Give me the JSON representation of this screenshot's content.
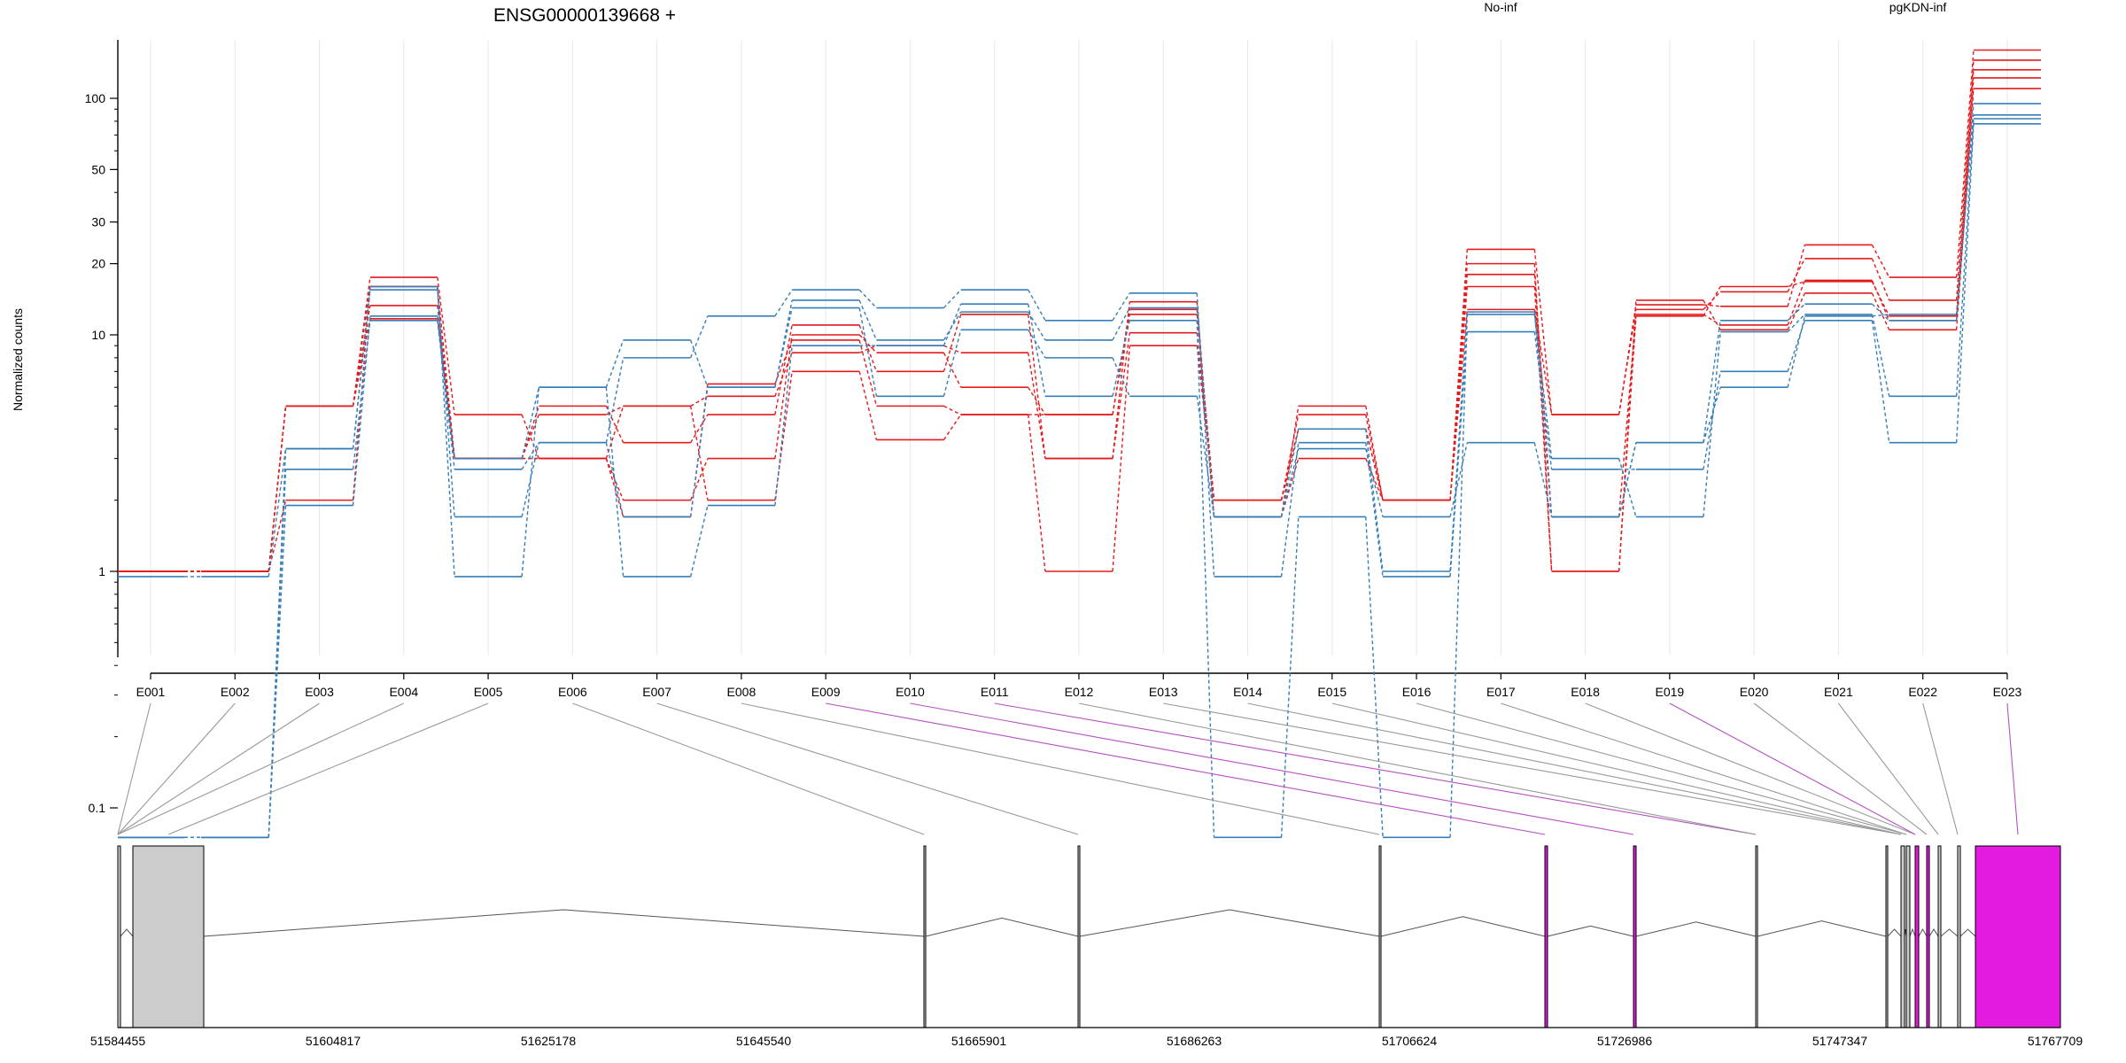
{
  "title": "ENSG00000139668 +",
  "legend": [
    {
      "label": "No-inf",
      "color": "#e41a1c"
    },
    {
      "label": "pgKDN-inf",
      "color": "#377eb8"
    }
  ],
  "chart_data": {
    "type": "line",
    "title": "ENSG00000139668 +",
    "ylabel": "Normalized counts",
    "xlabel": "",
    "y_scale": "log",
    "y_ticks": [
      0.1,
      1,
      10,
      20,
      30,
      50,
      100
    ],
    "ylim": [
      0.07,
      200
    ],
    "grid": "vertical, light",
    "legend_position": "top",
    "categories": [
      "E001",
      "E002",
      "E003",
      "E004",
      "E005",
      "E006",
      "E007",
      "E008",
      "E009",
      "E010",
      "E011",
      "E012",
      "E013",
      "E014",
      "E015",
      "E016",
      "E017",
      "E018",
      "E019",
      "E020",
      "E021",
      "E022",
      "E023"
    ],
    "series": [
      {
        "group": "No-inf",
        "color": "#e41a1c",
        "values": [
          1.0,
          1.0,
          5.0,
          17.5,
          4.6,
          3.0,
          5.0,
          5.5,
          8.4,
          9.0,
          8.4,
          3.0,
          10.2,
          2.0,
          4.6,
          2.0,
          12.8,
          4.6,
          13.4,
          13.2,
          24.0,
          17.5,
          160
        ]
      },
      {
        "group": "No-inf",
        "color": "#e41a1c",
        "values": [
          1.0,
          1.0,
          5.0,
          16.0,
          3.0,
          3.0,
          2.0,
          3.0,
          10.0,
          8.4,
          6.0,
          4.6,
          12.8,
          1.7,
          3.0,
          2.0,
          23.0,
          4.6,
          12.8,
          15.2,
          21.0,
          14.0,
          145
        ]
      },
      {
        "group": "No-inf",
        "color": "#e41a1c",
        "values": [
          1.0,
          1.0,
          5.0,
          11.7,
          3.0,
          5.0,
          3.5,
          4.6,
          11.0,
          7.0,
          12.2,
          3.0,
          13.8,
          1.7,
          5.0,
          2.0,
          20.0,
          1.0,
          12.0,
          16.0,
          16.8,
          12.0,
          132
        ]
      },
      {
        "group": "No-inf",
        "color": "#e41a1c",
        "values": [
          1.0,
          1.0,
          2.0,
          16.0,
          3.0,
          4.6,
          5.0,
          2.0,
          7.0,
          3.6,
          4.6,
          1.0,
          9.0,
          2.0,
          4.0,
          2.0,
          16.0,
          1.0,
          14.0,
          10.5,
          15.0,
          10.5,
          110
        ]
      },
      {
        "group": "No-inf",
        "color": "#e41a1c",
        "values": [
          1.0,
          1.0,
          5.0,
          13.3,
          3.0,
          3.0,
          1.7,
          6.2,
          9.5,
          5.0,
          4.6,
          4.6,
          12.2,
          2.0,
          4.0,
          2.0,
          18.0,
          1.7,
          12.2,
          11.0,
          17.0,
          11.5,
          122
        ]
      },
      {
        "group": "pgKDN-inf",
        "color": "#377eb8",
        "values": [
          0.95,
          0.95,
          3.3,
          15.5,
          1.7,
          3.5,
          8.0,
          12.0,
          15.5,
          13.0,
          15.5,
          11.5,
          15.0,
          0.95,
          3.5,
          0.95,
          10.3,
          2.7,
          2.7,
          7.0,
          11.5,
          3.5,
          78
        ]
      },
      {
        "group": "pgKDN-inf",
        "color": "#377eb8",
        "values": [
          0.075,
          0.075,
          2.7,
          11.5,
          2.7,
          3.5,
          1.7,
          6.0,
          13.0,
          5.5,
          10.5,
          8.0,
          5.5,
          1.7,
          3.3,
          1.7,
          3.5,
          1.7,
          3.5,
          6.0,
          12.0,
          12.2,
          85
        ]
      },
      {
        "group": "pgKDN-inf",
        "color": "#377eb8",
        "values": [
          0.075,
          0.075,
          1.9,
          12.0,
          3.0,
          6.0,
          9.5,
          6.0,
          14.0,
          9.5,
          12.5,
          9.5,
          13.0,
          1.7,
          4.0,
          1.0,
          12.5,
          1.7,
          3.5,
          11.5,
          13.5,
          11.5,
          95
        ]
      },
      {
        "group": "pgKDN-inf",
        "color": "#377eb8",
        "values": [
          0.075,
          0.075,
          3.3,
          16.0,
          0.95,
          6.0,
          0.95,
          1.9,
          9.0,
          9.0,
          13.5,
          5.5,
          11.5,
          0.075,
          1.7,
          0.075,
          12.2,
          3.0,
          1.7,
          10.3,
          12.2,
          5.5,
          82
        ]
      }
    ]
  },
  "gene_model": {
    "coordinates": [
      "51584455",
      "51604817",
      "51625178",
      "51645540",
      "51665901",
      "51686263",
      "51706624",
      "51726986",
      "51747347",
      "51767709"
    ]
  }
}
